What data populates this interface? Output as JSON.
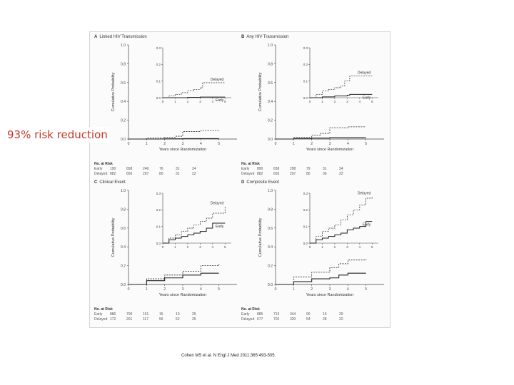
{
  "slide": {
    "headline": "93% risk reduction",
    "citation": "Cohen MS et al. N Engl J Med 2011;365:493-505."
  },
  "chart_data": [
    {
      "type": "line",
      "panel_letter": "A",
      "title": "Linked HIV Transmission",
      "xlabel": "Years since Randomization",
      "ylabel": "Cumulative Probability",
      "xlim": [
        0,
        6
      ],
      "ylim": [
        0,
        1.0
      ],
      "yticks": [
        "0.0",
        "0.2",
        "0.4",
        "0.6",
        "0.8",
        "1.0"
      ],
      "xticks": [
        "0",
        "1",
        "2",
        "3",
        "4",
        "5"
      ],
      "series": [
        {
          "name": "Delayed",
          "style": "dashed",
          "x": [
            0,
            1,
            2,
            2.6,
            3,
            4,
            5
          ],
          "y": [
            0,
            0.01,
            0.02,
            0.03,
            0.08,
            0.09,
            0.09
          ]
        },
        {
          "name": "Early",
          "style": "solid",
          "x": [
            0,
            1,
            2,
            3,
            4,
            5
          ],
          "y": [
            0,
            0,
            0.002,
            0.004,
            0.004,
            0.004
          ]
        }
      ],
      "inset": {
        "ylim": [
          0,
          0.3
        ],
        "yticks": [
          "0.0",
          "0.1",
          "0.2",
          "0.3"
        ],
        "xticks": [
          "0",
          "1",
          "2",
          "3",
          "4",
          "5"
        ],
        "series": [
          {
            "name": "Delayed",
            "style": "dashed",
            "x": [
              0,
              0.5,
              1,
              1.5,
              2,
              2.5,
              3,
              3.2,
              5
            ],
            "y": [
              0,
              0.01,
              0.02,
              0.03,
              0.04,
              0.05,
              0.06,
              0.09,
              0.09
            ]
          },
          {
            "name": "Early",
            "style": "solid",
            "x": [
              0,
              1,
              2,
              3,
              5
            ],
            "y": [
              0,
              0,
              0.002,
              0.004,
              0.004
            ]
          }
        ]
      },
      "risk_table": {
        "header": "No. at Risk",
        "rows": [
          {
            "label": "Early",
            "values": [
              "190",
              "658",
              "246",
              "76",
              "31",
              "24"
            ]
          },
          {
            "label": "Delayed",
            "values": [
              "882",
              "650",
              "297",
              "80",
              "31",
              "22"
            ]
          }
        ]
      }
    },
    {
      "type": "line",
      "panel_letter": "B",
      "title": "Any HIV Transmission",
      "xlabel": "Years since Randomization",
      "ylabel": "Cumulative Probability",
      "xlim": [
        0,
        6
      ],
      "ylim": [
        0,
        1.0
      ],
      "yticks": [
        "0.0",
        "0.2",
        "0.4",
        "0.6",
        "0.8",
        "1.0"
      ],
      "xticks": [
        "0",
        "1",
        "2",
        "3",
        "4",
        "5"
      ],
      "series": [
        {
          "name": "Delayed",
          "style": "dashed",
          "x": [
            0,
            1,
            2,
            2.5,
            3,
            4,
            5
          ],
          "y": [
            0,
            0.02,
            0.04,
            0.06,
            0.12,
            0.13,
            0.13
          ]
        },
        {
          "name": "Early",
          "style": "solid",
          "x": [
            0,
            1,
            2,
            3,
            4,
            5
          ],
          "y": [
            0,
            0.005,
            0.01,
            0.015,
            0.015,
            0.015
          ]
        }
      ],
      "inset": {
        "ylim": [
          0,
          0.3
        ],
        "yticks": [
          "0.0",
          "0.1",
          "0.2",
          "0.3"
        ],
        "xticks": [
          "0",
          "1",
          "2",
          "3",
          "4",
          "5"
        ],
        "series": [
          {
            "name": "Delayed",
            "style": "dashed",
            "x": [
              0,
              0.5,
              1,
              1.5,
              2,
              2.5,
              2.8,
              3.2,
              5
            ],
            "y": [
              0,
              0.02,
              0.04,
              0.05,
              0.06,
              0.07,
              0.1,
              0.13,
              0.13
            ]
          },
          {
            "name": "Early",
            "style": "solid",
            "x": [
              0,
              1,
              2,
              3,
              3.2,
              5
            ],
            "y": [
              0,
              0.005,
              0.01,
              0.015,
              0.02,
              0.02
            ]
          }
        ]
      },
      "risk_table": {
        "header": "No. at Risk",
        "rows": [
          {
            "label": "Early",
            "values": [
              "890",
              "658",
              "298",
              "79",
              "31",
              "24"
            ]
          },
          {
            "label": "Delayed",
            "values": [
              "882",
              "655",
              "297",
              "80",
              "36",
              "22"
            ]
          }
        ]
      }
    },
    {
      "type": "line",
      "panel_letter": "C",
      "title": "Clinical Event",
      "xlabel": "Years since Randomization",
      "ylabel": "Cumulative Probability",
      "xlim": [
        0,
        6
      ],
      "ylim": [
        0,
        1.0
      ],
      "yticks": [
        "0.0",
        "0.2",
        "0.4",
        "0.6",
        "0.8",
        "1.0"
      ],
      "xticks": [
        "0",
        "1",
        "2",
        "3",
        "4",
        "5"
      ],
      "series": [
        {
          "name": "Delayed",
          "style": "dashed",
          "x": [
            0,
            1,
            2,
            3,
            4,
            5
          ],
          "y": [
            0,
            0.06,
            0.1,
            0.14,
            0.2,
            0.22
          ]
        },
        {
          "name": "Early",
          "style": "solid",
          "x": [
            0,
            1,
            2,
            3,
            4,
            5
          ],
          "y": [
            0,
            0.04,
            0.07,
            0.1,
            0.12,
            0.12
          ]
        }
      ],
      "inset": {
        "ylim": [
          0,
          0.3
        ],
        "yticks": [
          "0.0",
          "0.1",
          "0.2",
          "0.3"
        ],
        "xticks": [
          "0",
          "1",
          "2",
          "3",
          "4",
          "5"
        ],
        "series": [
          {
            "name": "Delayed",
            "style": "dashed",
            "x": [
              0,
              0.5,
              1,
              1.5,
              2,
              2.5,
              3,
              3.5,
              4,
              5
            ],
            "y": [
              0,
              0.03,
              0.05,
              0.07,
              0.09,
              0.11,
              0.13,
              0.15,
              0.18,
              0.22
            ]
          },
          {
            "name": "Early",
            "style": "solid",
            "x": [
              0,
              0.5,
              1,
              1.5,
              2,
              2.5,
              3,
              3.5,
              4,
              5
            ],
            "y": [
              0,
              0.02,
              0.03,
              0.04,
              0.05,
              0.06,
              0.07,
              0.09,
              0.12,
              0.12
            ]
          }
        ]
      },
      "risk_table": {
        "header": "No. at Risk",
        "rows": [
          {
            "label": "Early",
            "values": [
              "886",
              "700",
              "151",
              "15",
              "10",
              "25"
            ]
          },
          {
            "label": "Delayed",
            "values": [
              "172",
              "201",
              "117",
              "56",
              "52",
              "25"
            ]
          }
        ]
      }
    },
    {
      "type": "line",
      "panel_letter": "D",
      "title": "Composite Event",
      "xlabel": "Years since Randomization",
      "ylabel": "Cumulative Probability",
      "xlim": [
        0,
        6
      ],
      "ylim": [
        0,
        1.0
      ],
      "yticks": [
        "0.0",
        "0.2",
        "0.4",
        "0.6",
        "0.8",
        "1.0"
      ],
      "xticks": [
        "0",
        "1",
        "2",
        "3",
        "4",
        "5"
      ],
      "series": [
        {
          "name": "Delayed",
          "style": "dashed",
          "x": [
            0,
            1,
            2,
            3,
            3.5,
            4,
            5
          ],
          "y": [
            0,
            0.08,
            0.13,
            0.18,
            0.22,
            0.26,
            0.27
          ]
        },
        {
          "name": "Early",
          "style": "solid",
          "x": [
            0,
            1,
            2,
            3,
            3.5,
            4,
            5
          ],
          "y": [
            0,
            0.03,
            0.06,
            0.07,
            0.1,
            0.12,
            0.12
          ]
        }
      ],
      "inset": {
        "ylim": [
          0,
          0.3
        ],
        "yticks": [
          "0.0",
          "0.1",
          "0.2",
          "0.3"
        ],
        "xticks": [
          "0",
          "1",
          "2",
          "3",
          "4",
          "5"
        ],
        "series": [
          {
            "name": "Delayed",
            "style": "dashed",
            "x": [
              0,
              0.5,
              1,
              1.5,
              2,
              2.5,
              3,
              3.5,
              4,
              4.5,
              5
            ],
            "y": [
              0,
              0.04,
              0.07,
              0.09,
              0.11,
              0.14,
              0.17,
              0.2,
              0.23,
              0.27,
              0.28
            ]
          },
          {
            "name": "Early",
            "style": "solid",
            "x": [
              0,
              0.5,
              1,
              1.5,
              2,
              2.5,
              3,
              3.5,
              4,
              4.5,
              5
            ],
            "y": [
              0,
              0.02,
              0.03,
              0.04,
              0.05,
              0.06,
              0.08,
              0.09,
              0.1,
              0.13,
              0.13
            ]
          }
        ]
      },
      "risk_table": {
        "header": "No. at Risk",
        "rows": [
          {
            "label": "Early",
            "values": [
              "885",
              "713",
              "344",
              "90",
              "16",
              "29"
            ]
          },
          {
            "label": "Delayed",
            "values": [
              "677",
              "702",
              "320",
              "54",
              "28",
              "22"
            ]
          }
        ]
      }
    }
  ]
}
